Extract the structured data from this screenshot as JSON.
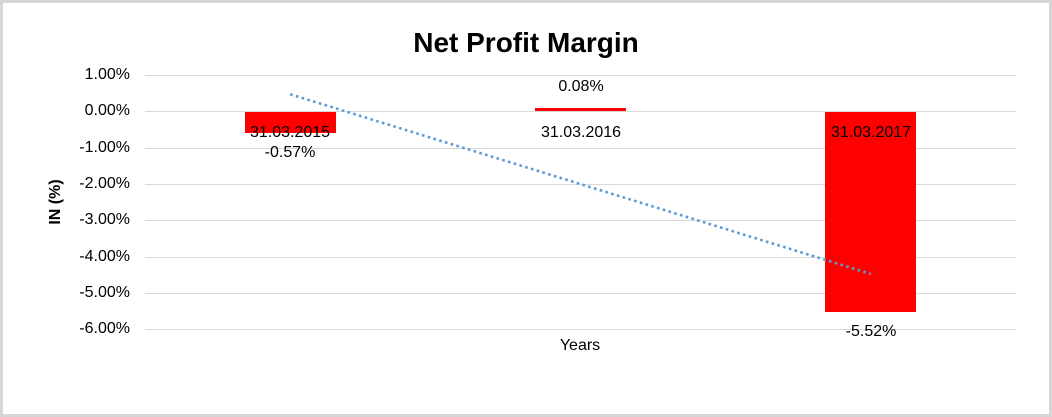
{
  "frame": {
    "background": "#ffffff",
    "border_color": "#d6d6d6"
  },
  "chart_data": {
    "type": "bar",
    "title": "Net Profit Margin",
    "xlabel": "Years",
    "ylabel": "IN (%)",
    "categories": [
      "31.03.2015",
      "31.03.2016",
      "31.03.2017"
    ],
    "values": [
      -0.57,
      0.08,
      -5.52
    ],
    "data_labels": [
      "-0.57%",
      "0.08%",
      "-5.52%"
    ],
    "ylim": [
      -6,
      1
    ],
    "ytick_values": [
      1,
      0,
      -1,
      -2,
      -3,
      -4,
      -5,
      -6
    ],
    "ytick_labels": [
      "1.00%",
      "0.00%",
      "-1.00%",
      "-2.00%",
      "-3.00%",
      "-4.00%",
      "-5.00%",
      "-6.00%"
    ],
    "grid": true,
    "legend": "none",
    "bar_color": "#ff0000",
    "text_color": "#000000",
    "gridline_color": "#d9d9d9",
    "trendline": {
      "type": "linear",
      "style": "dotted",
      "color": "#5b9bd5",
      "category_indices": [
        0,
        2
      ],
      "values": [
        0.47,
        -4.48
      ]
    }
  }
}
